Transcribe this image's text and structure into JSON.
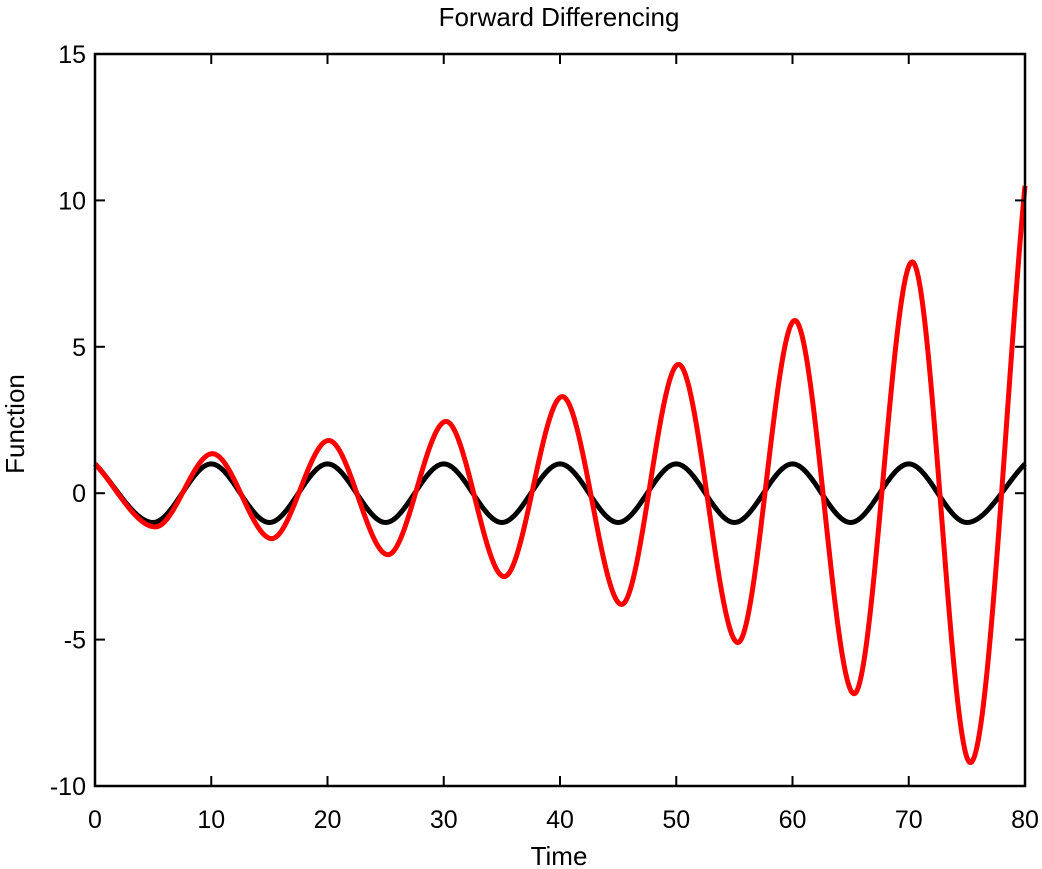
{
  "chart_data": {
    "type": "line",
    "title": "Forward Differencing",
    "xlabel": "Time",
    "ylabel": "Function",
    "xlim": [
      0,
      80
    ],
    "ylim": [
      -10,
      15
    ],
    "xticks": [
      0,
      10,
      20,
      30,
      40,
      50,
      60,
      70,
      80
    ],
    "yticks": [
      -10,
      -5,
      0,
      5,
      10,
      15
    ],
    "x_tick_labels": [
      "0",
      "10",
      "20",
      "30",
      "40",
      "50",
      "60",
      "70",
      "80"
    ],
    "y_tick_labels": [
      "-10",
      "-5",
      "0",
      "5",
      "10",
      "15"
    ],
    "grid": false,
    "series": [
      {
        "color": "#000000",
        "x": [
          0,
          5,
          10,
          15,
          20,
          25,
          30,
          35,
          40,
          45,
          50,
          55,
          60,
          65,
          70,
          75,
          80
        ],
        "values": [
          1,
          -1,
          1,
          -1,
          1,
          -1,
          1,
          -1,
          1,
          -1,
          1,
          -1,
          1,
          -1,
          1,
          -1,
          1
        ]
      },
      {
        "color": "#ff0000",
        "x": [
          0,
          5.2,
          10.1,
          15.2,
          20.1,
          25.2,
          30.2,
          35.2,
          40.2,
          45.3,
          50.2,
          55.3,
          60.2,
          65.3,
          70.3,
          75.3,
          80
        ],
        "values": [
          1.0,
          -1.15,
          1.35,
          -1.55,
          1.8,
          -2.1,
          2.45,
          -2.85,
          3.3,
          -3.8,
          4.4,
          -5.1,
          5.9,
          -6.85,
          7.9,
          -9.2,
          10.5
        ]
      }
    ]
  }
}
